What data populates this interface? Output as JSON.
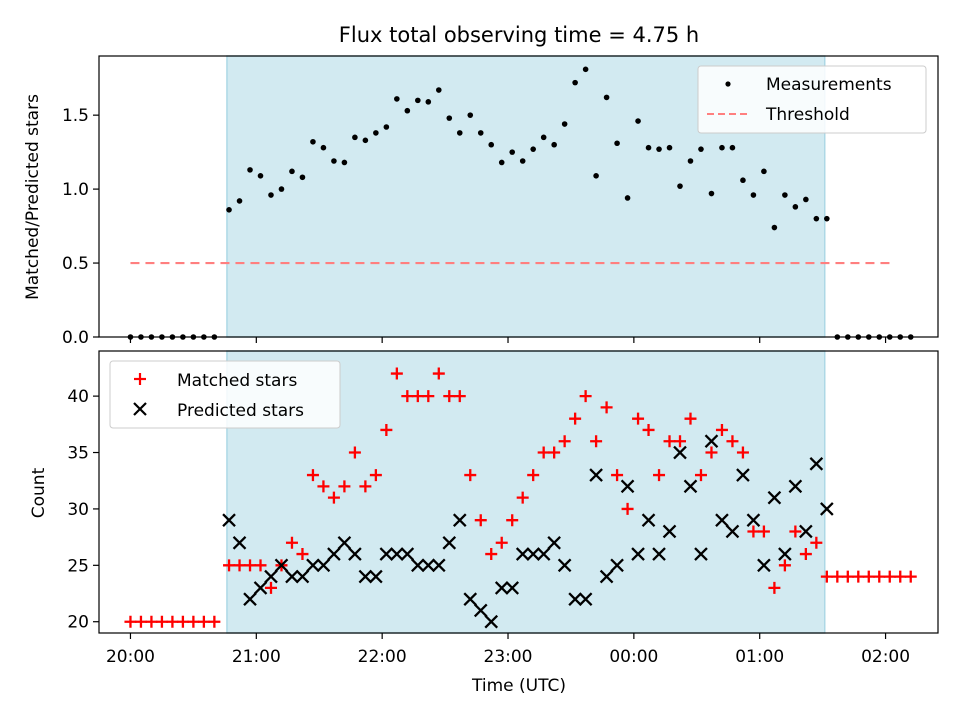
{
  "title": "Flux total observing time = 4.75 h",
  "colors": {
    "band": "#add8e6",
    "measurement": "#000000",
    "threshold": "#ff7f7f",
    "matched": "#ff0000",
    "predicted": "#000000"
  },
  "chart_data": [
    {
      "type": "scatter",
      "ylabel": "Matched/Predicted stars",
      "xlabel": "",
      "ylim": [
        0,
        1.9
      ],
      "yticks": [
        "0.0",
        "0.5",
        "1.0",
        "1.5"
      ],
      "xlim": [
        "19:45",
        "02:25"
      ],
      "shaded_interval": [
        "20:46",
        "01:31"
      ],
      "legend": {
        "placement": "top-right",
        "entries": [
          "Measurements",
          "Threshold"
        ]
      },
      "series": [
        {
          "name": "Measurements",
          "x": [
            "20:00",
            "20:05",
            "20:10",
            "20:15",
            "20:20",
            "20:25",
            "20:30",
            "20:35",
            "20:40",
            "20:47",
            "20:52",
            "20:57",
            "21:02",
            "21:07",
            "21:12",
            "21:17",
            "21:22",
            "21:27",
            "21:32",
            "21:37",
            "21:42",
            "21:47",
            "21:52",
            "21:57",
            "22:02",
            "22:07",
            "22:12",
            "22:17",
            "22:22",
            "22:27",
            "22:32",
            "22:37",
            "22:42",
            "22:47",
            "22:52",
            "22:57",
            "23:02",
            "23:07",
            "23:12",
            "23:17",
            "23:22",
            "23:27",
            "23:32",
            "23:37",
            "23:42",
            "23:47",
            "23:52",
            "23:57",
            "00:02",
            "00:07",
            "00:12",
            "00:17",
            "00:22",
            "00:27",
            "00:32",
            "00:37",
            "00:42",
            "00:47",
            "00:52",
            "00:57",
            "01:02",
            "01:07",
            "01:12",
            "01:17",
            "01:22",
            "01:27",
            "01:32",
            "01:37",
            "01:42",
            "01:47",
            "01:52",
            "01:57",
            "02:02",
            "02:07",
            "02:12"
          ],
          "y": [
            0,
            0,
            0,
            0,
            0,
            0,
            0,
            0,
            0,
            0.86,
            0.92,
            1.13,
            1.09,
            0.96,
            1.0,
            1.12,
            1.08,
            1.32,
            1.28,
            1.19,
            1.18,
            1.35,
            1.33,
            1.38,
            1.42,
            1.61,
            1.53,
            1.6,
            1.59,
            1.67,
            1.48,
            1.38,
            1.5,
            1.38,
            1.3,
            1.18,
            1.25,
            1.19,
            1.27,
            1.35,
            1.3,
            1.44,
            1.72,
            1.81,
            1.09,
            1.62,
            1.31,
            0.94,
            1.46,
            1.28,
            1.27,
            1.28,
            1.02,
            1.19,
            1.27,
            0.97,
            1.28,
            1.28,
            1.06,
            0.96,
            1.12,
            0.74,
            0.96,
            0.88,
            0.93,
            0.8,
            0.8,
            0,
            0,
            0,
            0,
            0,
            0,
            0,
            0
          ]
        },
        {
          "name": "Threshold",
          "kind": "line",
          "x": [
            "20:00",
            "02:02"
          ],
          "y": [
            0.5,
            0.5
          ]
        }
      ]
    },
    {
      "type": "scatter",
      "ylabel": "Count",
      "xlabel": "Time (UTC)",
      "ylim": [
        19,
        44
      ],
      "yticks": [
        "20",
        "25",
        "30",
        "35",
        "40"
      ],
      "xticks": [
        "20:00",
        "21:00",
        "22:00",
        "23:00",
        "00:00",
        "01:00",
        "02:00"
      ],
      "xlim": [
        "19:45",
        "02:25"
      ],
      "shaded_interval": [
        "20:46",
        "01:31"
      ],
      "legend": {
        "placement": "top-left",
        "entries": [
          "Matched stars",
          "Predicted stars"
        ]
      },
      "series": [
        {
          "name": "Matched stars",
          "x": [
            "20:00",
            "20:05",
            "20:10",
            "20:15",
            "20:20",
            "20:25",
            "20:30",
            "20:35",
            "20:40",
            "20:47",
            "20:52",
            "20:57",
            "21:02",
            "21:07",
            "21:12",
            "21:17",
            "21:22",
            "21:27",
            "21:32",
            "21:37",
            "21:42",
            "21:47",
            "21:52",
            "21:57",
            "22:02",
            "22:07",
            "22:12",
            "22:17",
            "22:22",
            "22:27",
            "22:32",
            "22:37",
            "22:42",
            "22:47",
            "22:52",
            "22:57",
            "23:02",
            "23:07",
            "23:12",
            "23:17",
            "23:22",
            "23:27",
            "23:32",
            "23:37",
            "23:42",
            "23:47",
            "23:52",
            "23:57",
            "00:02",
            "00:07",
            "00:12",
            "00:17",
            "00:22",
            "00:27",
            "00:32",
            "00:37",
            "00:42",
            "00:47",
            "00:52",
            "00:57",
            "01:02",
            "01:07",
            "01:12",
            "01:17",
            "01:22",
            "01:27",
            "01:32",
            "01:37",
            "01:42",
            "01:47",
            "01:52",
            "01:57",
            "02:02",
            "02:07",
            "02:12"
          ],
          "y": [
            20,
            20,
            20,
            20,
            20,
            20,
            20,
            20,
            20,
            25,
            25,
            25,
            25,
            23,
            25,
            27,
            26,
            33,
            32,
            31,
            32,
            35,
            32,
            33,
            37,
            42,
            40,
            40,
            40,
            42,
            40,
            40,
            33,
            29,
            26,
            27,
            29,
            31,
            33,
            35,
            35,
            36,
            38,
            40,
            36,
            39,
            33,
            30,
            38,
            37,
            33,
            36,
            36,
            38,
            33,
            35,
            37,
            36,
            35,
            28,
            28,
            23,
            25,
            28,
            26,
            27,
            24,
            24,
            24,
            24,
            24,
            24,
            24,
            24,
            24
          ]
        },
        {
          "name": "Predicted stars",
          "x": [
            "20:47",
            "20:52",
            "20:57",
            "21:02",
            "21:07",
            "21:12",
            "21:17",
            "21:22",
            "21:27",
            "21:32",
            "21:37",
            "21:42",
            "21:47",
            "21:52",
            "21:57",
            "22:02",
            "22:07",
            "22:12",
            "22:17",
            "22:22",
            "22:27",
            "22:32",
            "22:37",
            "22:42",
            "22:47",
            "22:52",
            "22:57",
            "23:02",
            "23:07",
            "23:12",
            "23:17",
            "23:22",
            "23:27",
            "23:32",
            "23:37",
            "23:42",
            "23:47",
            "23:52",
            "23:57",
            "00:02",
            "00:07",
            "00:12",
            "00:17",
            "00:22",
            "00:27",
            "00:32",
            "00:37",
            "00:42",
            "00:47",
            "00:52",
            "00:57",
            "01:02",
            "01:07",
            "01:12",
            "01:17",
            "01:22",
            "01:27",
            "01:32"
          ],
          "y": [
            29,
            27,
            22,
            23,
            24,
            25,
            24,
            24,
            25,
            25,
            26,
            27,
            26,
            24,
            24,
            26,
            26,
            26,
            25,
            25,
            25,
            27,
            29,
            22,
            21,
            20,
            23,
            23,
            26,
            26,
            26,
            27,
            25,
            22,
            22,
            33,
            24,
            25,
            32,
            26,
            29,
            26,
            28,
            35,
            32,
            26,
            36,
            29,
            28,
            33,
            29,
            25,
            31,
            26,
            32,
            28,
            34,
            30
          ]
        }
      ]
    }
  ]
}
